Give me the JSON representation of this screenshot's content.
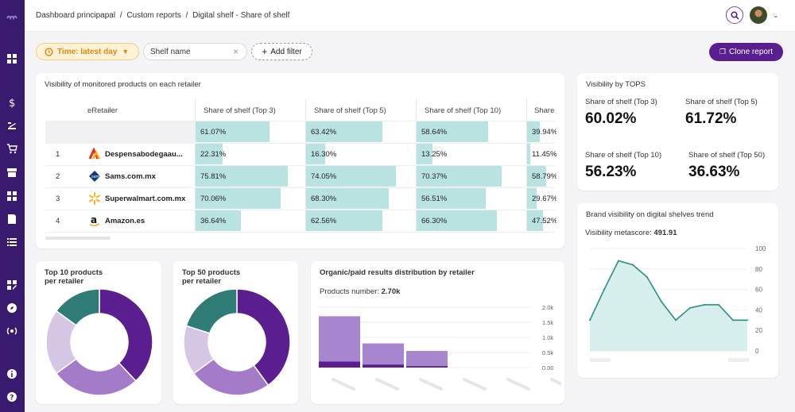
{
  "breadcrumb": [
    "Dashboard principapal",
    "/",
    "Custom reports",
    "/",
    "Digital shelf - Share of shelf"
  ],
  "filters": {
    "time_label": "Time: latest day",
    "shelf_placeholder": "Shelf name",
    "add_filter": "Add filter"
  },
  "clone_button": "Clone report",
  "visibility_table": {
    "title": "Visibility of monitored products on each retailer",
    "columns": [
      "eRetailer",
      "Share of shelf (Top 3)",
      "Share of shelf (Top 5)",
      "Share of shelf (Top 10)",
      "Share"
    ],
    "totals": [
      "61.07%",
      "63.42%",
      "58.64%",
      "39.94%"
    ],
    "total_fractions": [
      0.61,
      0.63,
      0.59,
      0.4
    ],
    "rows": [
      {
        "rank": "1",
        "name": "Despensabodegaau...",
        "values": [
          "22.31%",
          "16.30%",
          "13.25%",
          "11.45%"
        ],
        "fractions": [
          0.22,
          0.16,
          0.13,
          0.11
        ]
      },
      {
        "rank": "2",
        "name": "Sams.com.mx",
        "values": [
          "75.81%",
          "74.05%",
          "70.37%",
          "58.79%"
        ],
        "fractions": [
          0.76,
          0.74,
          0.7,
          0.59
        ]
      },
      {
        "rank": "3",
        "name": "Superwalmart.com.mx",
        "values": [
          "70.06%",
          "68.30%",
          "56.51%",
          "29.67%"
        ],
        "fractions": [
          0.7,
          0.68,
          0.57,
          0.3
        ]
      },
      {
        "rank": "4",
        "name": "Amazon.es",
        "values": [
          "36.64%",
          "62.56%",
          "66.30%",
          "47.52%"
        ],
        "fractions": [
          0.37,
          0.63,
          0.66,
          0.48
        ]
      }
    ]
  },
  "tops": {
    "title": "Visibility by TOPS",
    "kpis": [
      {
        "label": "Share of shelf (Top 3)",
        "value": "60.02%"
      },
      {
        "label": "Share of shelf (Top 5)",
        "value": "61.72%"
      },
      {
        "label": "Share of shelf (Top 10)",
        "value": "56.23%"
      },
      {
        "label": "Share of shelf (Top 50)",
        "value": "36.63%"
      }
    ]
  },
  "trend": {
    "title": "Brand visibility on digital shelves trend",
    "metascore_label": "Visibility metascore:",
    "metascore_value": "491.91"
  },
  "donut1": {
    "title_line1": "Top 10 products",
    "title_line2": "per retailer"
  },
  "donut2": {
    "title_line1": "Top 50 products",
    "title_line2": "per retailer"
  },
  "organic": {
    "title": "Organic/paid results distribution by retailer",
    "products_label": "Products number:",
    "products_value": "2.70k"
  },
  "colors": {
    "accent": "#5b1e91",
    "sidebar": "#3a1a6e",
    "teal_bar": "#b9e3e1",
    "time_pill": "#e08a12"
  },
  "chart_data": [
    {
      "type": "area",
      "title": "Brand visibility on digital shelves trend",
      "ylim": [
        0,
        100
      ],
      "y_ticks": [
        "100",
        "80",
        "60",
        "40",
        "20",
        "0"
      ],
      "x": [
        1,
        2,
        3,
        4,
        5,
        6,
        7,
        8,
        9,
        10,
        11,
        12
      ],
      "series": [
        {
          "values": [
            30,
            60,
            88,
            84,
            72,
            48,
            30,
            42,
            45,
            45,
            30,
            30
          ]
        }
      ],
      "grid": true
    },
    {
      "type": "pie",
      "title": "Top 10 products per retailer",
      "values": [
        38,
        27,
        20,
        15
      ],
      "colors": [
        "#5b1e91",
        "#a47bc9",
        "#d5c6e6",
        "#2f7b76"
      ]
    },
    {
      "type": "pie",
      "title": "Top 50 products per retailer",
      "values": [
        40,
        25,
        15,
        20
      ],
      "colors": [
        "#5b1e91",
        "#a47bc9",
        "#d5c6e6",
        "#2f7b76"
      ]
    },
    {
      "type": "bar",
      "title": "Organic/paid results distribution by retailer",
      "y_ticks": [
        "2.0k",
        "1.5k",
        "1.0k",
        "0.5k",
        "0.00"
      ],
      "ylim": [
        0,
        2000
      ],
      "series": [
        {
          "name": "organic",
          "values": [
            1500,
            700,
            500,
            0,
            0,
            0
          ]
        },
        {
          "name": "paid",
          "values": [
            200,
            100,
            50,
            0,
            0,
            0
          ]
        }
      ]
    }
  ]
}
